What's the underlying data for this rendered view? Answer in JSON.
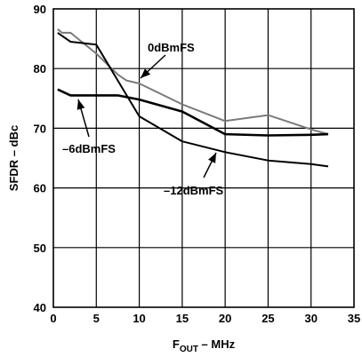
{
  "chart_data": {
    "type": "line",
    "xlabel_main": "F",
    "xlabel_sub": "OUT",
    "xlabel_rest": " – MHz",
    "ylabel": "SFDR – dBc",
    "xlim": [
      0,
      35
    ],
    "ylim": [
      40,
      90
    ],
    "x_ticks": [
      "0",
      "5",
      "10",
      "15",
      "20",
      "25",
      "30",
      "35"
    ],
    "y_ticks": [
      "40",
      "50",
      "60",
      "70",
      "80",
      "90"
    ],
    "grid": true,
    "series": [
      {
        "name": "0dBmFS",
        "color": "#7a7a7a",
        "x": [
          0.5,
          1.0,
          2.0,
          5.0,
          7.5,
          8.5,
          10.0,
          15.0,
          20.0,
          25.0,
          30.0,
          32.0
        ],
        "y": [
          86.6,
          86.0,
          86.0,
          82.5,
          79.0,
          78.0,
          77.5,
          74.0,
          71.2,
          72.2,
          69.8,
          69.0
        ]
      },
      {
        "name": "-6dBmFS",
        "color": "#000000",
        "x": [
          0.5,
          2.0,
          5.0,
          7.5,
          10.0,
          15.0,
          20.0,
          25.0,
          30.0,
          32.0
        ],
        "y": [
          76.5,
          75.5,
          75.5,
          75.5,
          74.8,
          72.8,
          69.0,
          68.8,
          68.9,
          69.0
        ]
      },
      {
        "name": "-12dBmFS",
        "color": "#000000",
        "x": [
          0.5,
          2.0,
          5.0,
          7.5,
          10.0,
          15.0,
          20.0,
          25.0,
          30.0,
          32.0
        ],
        "y": [
          86.0,
          84.5,
          84.0,
          78.0,
          72.0,
          67.8,
          66.0,
          64.6,
          64.0,
          63.6
        ]
      }
    ],
    "annotations": [
      {
        "text": "0dBmFS",
        "series": "0dBmFS"
      },
      {
        "text": "–6dBmFS",
        "series": "-6dBmFS"
      },
      {
        "text": "–12dBmFS",
        "series": "-12dBmFS"
      }
    ]
  }
}
